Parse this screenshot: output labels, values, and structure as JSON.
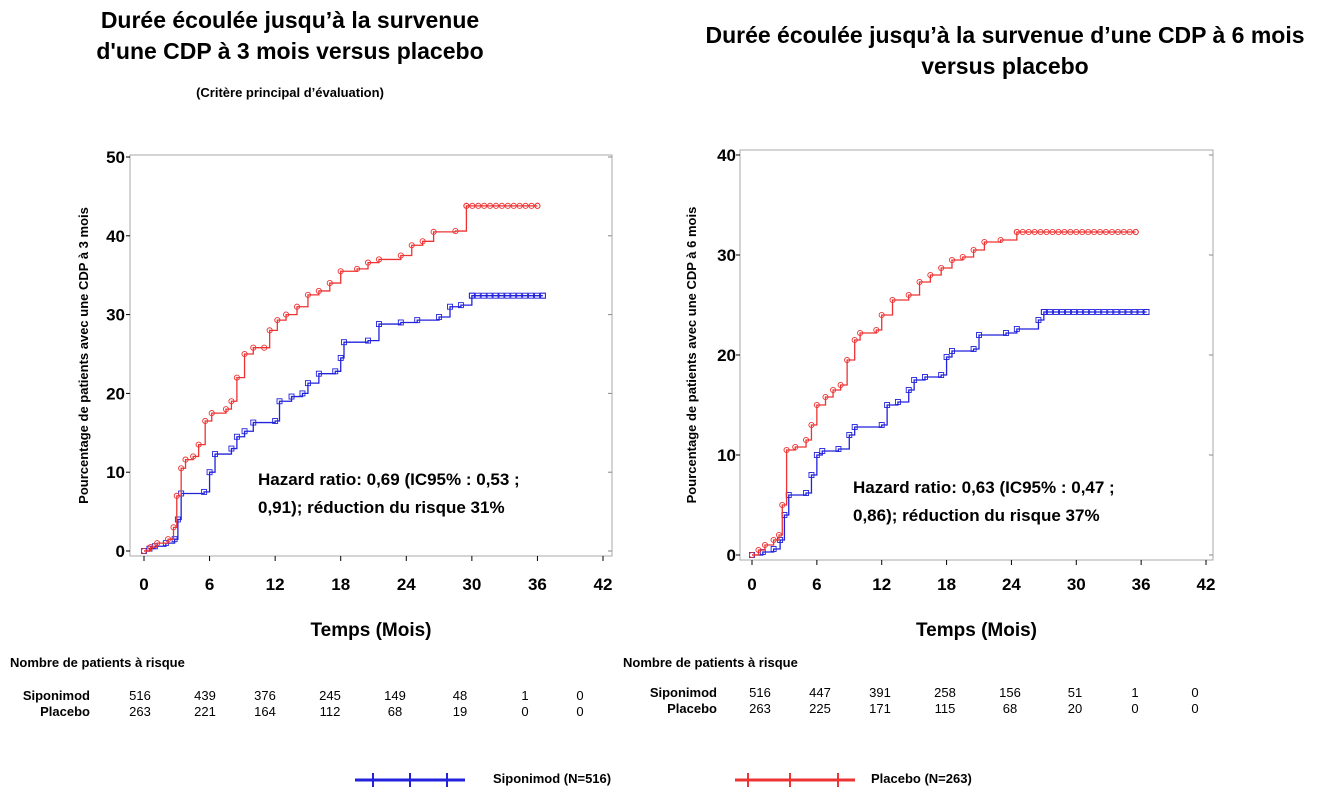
{
  "chart_data": [
    {
      "type": "line",
      "title": "Durée écoulée jusqu’à la survenue d'une CDP à 3 mois versus placebo",
      "subtitle": "(Critère principal d’évaluation)",
      "xlabel": "Temps (Mois)",
      "ylabel": "Pourcentage de patients avec une CDP à 3 mois",
      "xlim": [
        0,
        42
      ],
      "ylim": [
        0,
        50
      ],
      "xticks": [
        "0",
        "6",
        "12",
        "18",
        "24",
        "30",
        "36",
        "42"
      ],
      "yticks": [
        "0",
        "10",
        "20",
        "30",
        "40",
        "50"
      ],
      "annotation": [
        "Hazard ratio: 0,69 (IC95% : 0,53 ;",
        "0,91); réduction du risque 31%"
      ],
      "series": [
        {
          "name": "Siponimod",
          "color": "#2222dd",
          "points": [
            [
              0,
              0
            ],
            [
              0.5,
              0.3
            ],
            [
              1,
              0.6
            ],
            [
              2,
              1
            ],
            [
              2.8,
              1.5
            ],
            [
              3.1,
              4
            ],
            [
              3.4,
              7.3
            ],
            [
              5.5,
              7.5
            ],
            [
              6,
              10
            ],
            [
              6.5,
              12.3
            ],
            [
              8,
              13
            ],
            [
              8.5,
              14.5
            ],
            [
              9.2,
              15.2
            ],
            [
              10,
              16.3
            ],
            [
              12,
              16.5
            ],
            [
              12.4,
              19
            ],
            [
              13.5,
              19.6
            ],
            [
              14.5,
              20
            ],
            [
              15,
              21.3
            ],
            [
              16,
              22.5
            ],
            [
              17.5,
              22.8
            ],
            [
              18,
              24.5
            ],
            [
              18.3,
              26.5
            ],
            [
              20.5,
              26.7
            ],
            [
              21.5,
              28.8
            ],
            [
              23.5,
              29
            ],
            [
              25,
              29.3
            ],
            [
              27,
              29.7
            ],
            [
              28,
              31
            ],
            [
              29,
              31.2
            ],
            [
              30,
              32.4
            ],
            [
              36.5,
              32.4
            ]
          ]
        },
        {
          "name": "Placebo",
          "color": "#ee3333",
          "points": [
            [
              0,
              0
            ],
            [
              0.6,
              0.5
            ],
            [
              1.2,
              1
            ],
            [
              2.2,
              1.5
            ],
            [
              2.7,
              3
            ],
            [
              3,
              7
            ],
            [
              3.4,
              10.5
            ],
            [
              3.8,
              11.6
            ],
            [
              4.5,
              12
            ],
            [
              5,
              13.5
            ],
            [
              5.6,
              16.5
            ],
            [
              6.2,
              17.5
            ],
            [
              7.5,
              18
            ],
            [
              8,
              19
            ],
            [
              8.5,
              22
            ],
            [
              9.2,
              25
            ],
            [
              10,
              25.8
            ],
            [
              11,
              25.8
            ],
            [
              11.5,
              28
            ],
            [
              12.2,
              29.3
            ],
            [
              13,
              30
            ],
            [
              14,
              31
            ],
            [
              15,
              32.5
            ],
            [
              16,
              33
            ],
            [
              17,
              34
            ],
            [
              18,
              35.5
            ],
            [
              19.5,
              35.8
            ],
            [
              20.5,
              36.6
            ],
            [
              21.5,
              37
            ],
            [
              23.5,
              37.5
            ],
            [
              24.5,
              38.8
            ],
            [
              25.5,
              39.3
            ],
            [
              26.5,
              40.5
            ],
            [
              28.5,
              40.6
            ],
            [
              29.5,
              43.8
            ],
            [
              36,
              43.8
            ]
          ]
        }
      ]
    },
    {
      "type": "line",
      "title": "Durée écoulée jusqu’à la survenue d’une CDP à 6 mois versus placebo",
      "xlabel": "Temps (Mois)",
      "ylabel": "Pourcentage de patients avec une CDP à 6 mois",
      "xlim": [
        0,
        42
      ],
      "ylim": [
        0,
        40
      ],
      "xticks": [
        "0",
        "6",
        "12",
        "18",
        "24",
        "30",
        "36",
        "42"
      ],
      "yticks": [
        "0",
        "10",
        "20",
        "30",
        "40"
      ],
      "annotation": [
        "Hazard ratio: 0,63 (IC95% : 0,47 ;",
        "0,86); réduction du risque 37%"
      ],
      "series": [
        {
          "name": "Siponimod",
          "color": "#2222dd",
          "points": [
            [
              0,
              0
            ],
            [
              1,
              0.3
            ],
            [
              2,
              0.6
            ],
            [
              2.6,
              1.5
            ],
            [
              3,
              4
            ],
            [
              3.4,
              6
            ],
            [
              5,
              6.2
            ],
            [
              5.5,
              8
            ],
            [
              6,
              10
            ],
            [
              6.5,
              10.4
            ],
            [
              8,
              10.6
            ],
            [
              9,
              12
            ],
            [
              9.5,
              12.8
            ],
            [
              12,
              13
            ],
            [
              12.5,
              15
            ],
            [
              13.5,
              15.3
            ],
            [
              14.5,
              16.5
            ],
            [
              15,
              17.5
            ],
            [
              16,
              17.8
            ],
            [
              17.5,
              18
            ],
            [
              18,
              19.8
            ],
            [
              18.5,
              20.4
            ],
            [
              20.5,
              20.6
            ],
            [
              21,
              22
            ],
            [
              23.5,
              22.2
            ],
            [
              24.5,
              22.6
            ],
            [
              26.5,
              23.5
            ],
            [
              27,
              24.3
            ],
            [
              36.5,
              24.3
            ]
          ]
        },
        {
          "name": "Placebo",
          "color": "#ee3333",
          "points": [
            [
              0,
              0
            ],
            [
              0.6,
              0.5
            ],
            [
              1.2,
              1
            ],
            [
              2,
              1.5
            ],
            [
              2.5,
              2
            ],
            [
              2.8,
              5
            ],
            [
              3.2,
              10.5
            ],
            [
              4,
              10.8
            ],
            [
              5,
              11.5
            ],
            [
              5.5,
              13
            ],
            [
              6,
              15
            ],
            [
              6.8,
              15.8
            ],
            [
              7.5,
              16.5
            ],
            [
              8.2,
              17
            ],
            [
              8.8,
              19.5
            ],
            [
              9.5,
              21.5
            ],
            [
              10,
              22.2
            ],
            [
              11.5,
              22.5
            ],
            [
              12,
              24
            ],
            [
              13,
              25.5
            ],
            [
              14.5,
              26
            ],
            [
              15.5,
              27.3
            ],
            [
              16.5,
              28
            ],
            [
              17.5,
              28.7
            ],
            [
              18.5,
              29.5
            ],
            [
              19.5,
              29.8
            ],
            [
              20.5,
              30.5
            ],
            [
              21.5,
              31.3
            ],
            [
              23,
              31.5
            ],
            [
              24.5,
              32.3
            ],
            [
              35.5,
              32.3
            ]
          ]
        }
      ]
    }
  ],
  "risk_tables": [
    {
      "heading": "Nombre de patients à risque",
      "rows": [
        {
          "label": "Siponimod",
          "values": [
            "516",
            "439",
            "376",
            "245",
            "149",
            "48",
            "1",
            "0"
          ]
        },
        {
          "label": "Placebo",
          "values": [
            "263",
            "221",
            "164",
            "112",
            "68",
            "19",
            "0",
            "0"
          ]
        }
      ]
    },
    {
      "heading": "Nombre de patients à risque",
      "rows": [
        {
          "label": "Siponimod",
          "values": [
            "516",
            "447",
            "391",
            "258",
            "156",
            "51",
            "1",
            "0"
          ]
        },
        {
          "label": "Placebo",
          "values": [
            "263",
            "225",
            "171",
            "115",
            "68",
            "20",
            "0",
            "0"
          ]
        }
      ]
    }
  ],
  "legend": [
    {
      "label": "Siponimod (N=516)",
      "color": "#2222dd"
    },
    {
      "label": "Placebo (N=263)",
      "color": "#ee3333"
    }
  ]
}
